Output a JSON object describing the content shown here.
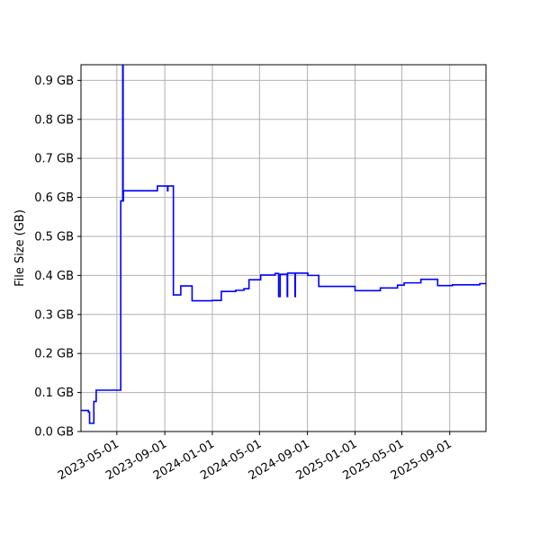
{
  "chart_data": {
    "type": "line",
    "step": "post",
    "title": "",
    "xlabel": "",
    "ylabel": "File Size (GB)",
    "xlim": [
      "2023-01-29",
      "2025-12-03"
    ],
    "ylim": [
      0,
      0.94
    ],
    "grid": true,
    "line_color": "#0000ff",
    "xticks": [
      "2023-05-01",
      "2023-09-01",
      "2024-01-01",
      "2024-05-01",
      "2024-09-01",
      "2025-01-01",
      "2025-05-01",
      "2025-09-01"
    ],
    "yticks": [
      0,
      0.1,
      0.2,
      0.3,
      0.4,
      0.5,
      0.6,
      0.7,
      0.8,
      0.9
    ],
    "ytick_labels": [
      "0.0 GB",
      "0.1 GB",
      "0.2 GB",
      "0.3 GB",
      "0.4 GB",
      "0.5 GB",
      "0.6 GB",
      "0.7 GB",
      "0.8 GB",
      "0.9 GB"
    ],
    "series": [
      {
        "points": [
          [
            "2023-01-29",
            0.054
          ],
          [
            "2023-02-17",
            0.05
          ],
          [
            "2023-02-20",
            0.021
          ],
          [
            "2023-03-03",
            0.077
          ],
          [
            "2023-03-09",
            0.106
          ],
          [
            "2023-05-11",
            0.591
          ],
          [
            "2023-05-16",
            1.2
          ],
          [
            "2023-05-17",
            0.591
          ],
          [
            "2023-05-18",
            0.617
          ],
          [
            "2023-08-13",
            0.629
          ],
          [
            "2023-09-08",
            0.617
          ],
          [
            "2023-09-09",
            0.629
          ],
          [
            "2023-09-23",
            0.35
          ],
          [
            "2023-10-12",
            0.373
          ],
          [
            "2023-11-10",
            0.335
          ],
          [
            "2024-01-01",
            0.336
          ],
          [
            "2024-01-24",
            0.359
          ],
          [
            "2024-03-01",
            0.362
          ],
          [
            "2024-03-22",
            0.366
          ],
          [
            "2024-04-04",
            0.389
          ],
          [
            "2024-05-04",
            0.401
          ],
          [
            "2024-06-10",
            0.405
          ],
          [
            "2024-06-19",
            0.346
          ],
          [
            "2024-06-23",
            0.403
          ],
          [
            "2024-07-11",
            0.346
          ],
          [
            "2024-07-12",
            0.406
          ],
          [
            "2024-07-31",
            0.346
          ],
          [
            "2024-08-01",
            0.406
          ],
          [
            "2024-09-02",
            0.4
          ],
          [
            "2024-09-30",
            0.372
          ],
          [
            "2025-01-01",
            0.361
          ],
          [
            "2025-03-07",
            0.368
          ],
          [
            "2025-04-20",
            0.375
          ],
          [
            "2025-05-07",
            0.381
          ],
          [
            "2025-06-19",
            0.39
          ],
          [
            "2025-08-01",
            0.374
          ],
          [
            "2025-09-08",
            0.376
          ],
          [
            "2025-11-17",
            0.379
          ],
          [
            "2025-12-03",
            0.379
          ]
        ]
      }
    ]
  }
}
